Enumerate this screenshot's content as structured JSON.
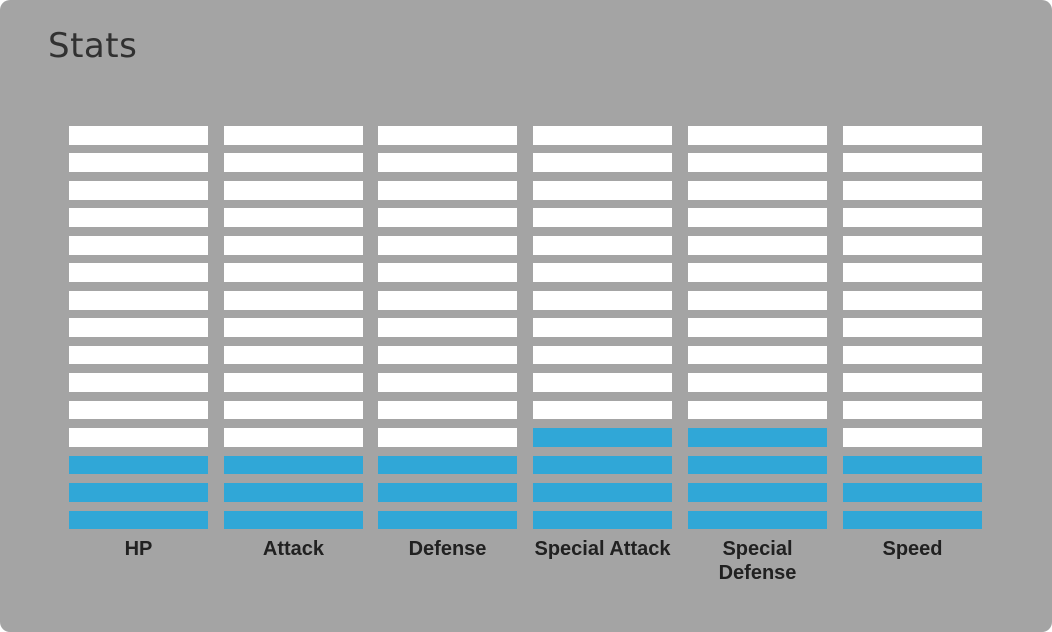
{
  "title": "Stats",
  "segments_total": 15,
  "colors": {
    "panel": "#a4a4a4",
    "empty": "#ffffff",
    "filled": "#30a7d7",
    "text": "#212121"
  },
  "stats": [
    {
      "label": "HP",
      "level": 3
    },
    {
      "label": "Attack",
      "level": 3
    },
    {
      "label": "Defense",
      "level": 3
    },
    {
      "label": "Special Attack",
      "level": 4
    },
    {
      "label": "Special Defense",
      "level": 4
    },
    {
      "label": "Speed",
      "level": 3
    }
  ]
}
